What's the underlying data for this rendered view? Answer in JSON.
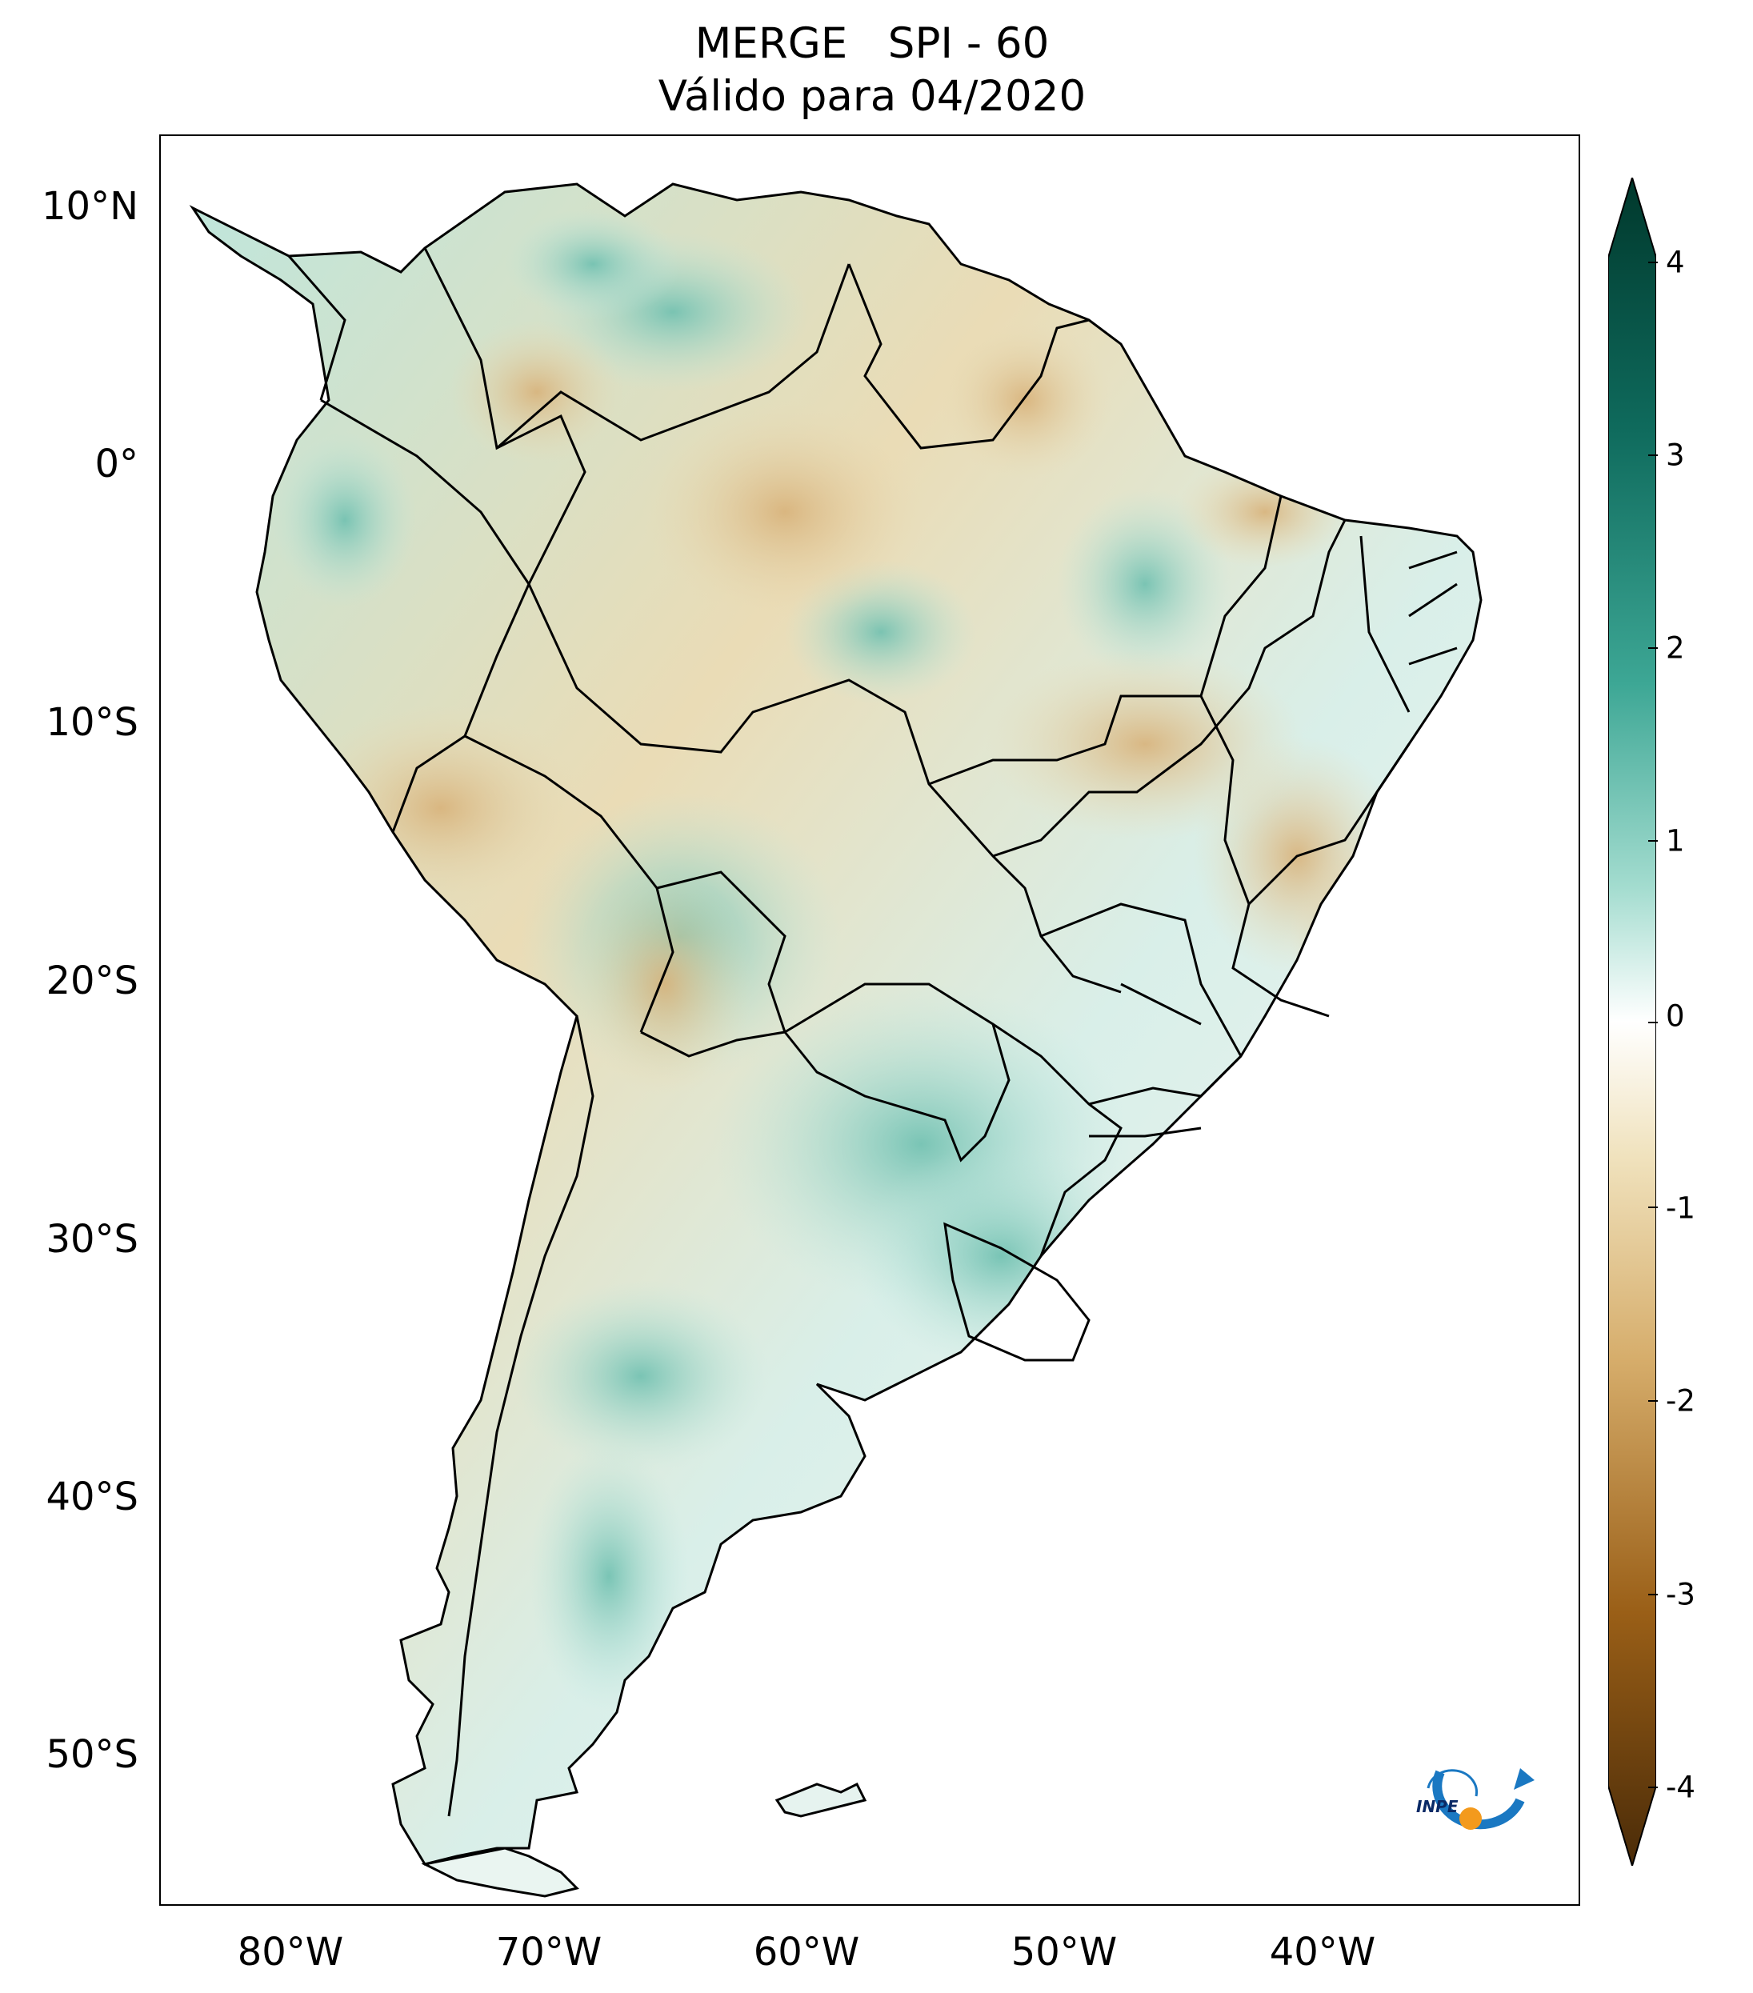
{
  "title": {
    "line1": "MERGE   SPI - 60",
    "line2": "Válido para 04/2020"
  },
  "map": {
    "region": "South America",
    "lat_labels": [
      "10°N",
      "0°",
      "10°S",
      "20°S",
      "30°S",
      "40°S",
      "50°S"
    ],
    "lon_labels": [
      "80°W",
      "70°W",
      "60°W",
      "50°W",
      "40°W"
    ],
    "border_color": "#000000"
  },
  "colorbar": {
    "ticks": [
      "4",
      "3",
      "2",
      "1",
      "0",
      "-1",
      "-2",
      "-3",
      "-4"
    ],
    "colors": {
      "max": "#00382c",
      "high": "#2b9a8c",
      "mid_high": "#c2e9e0",
      "zero": "#ffffff",
      "mid_low": "#ebd7a8",
      "low": "#b97a2d",
      "min": "#4a2b08"
    },
    "extend": "both"
  },
  "logo": {
    "text": "INPE",
    "colors": {
      "arc": "#1a78c2",
      "dot": "#f39a1d"
    }
  }
}
